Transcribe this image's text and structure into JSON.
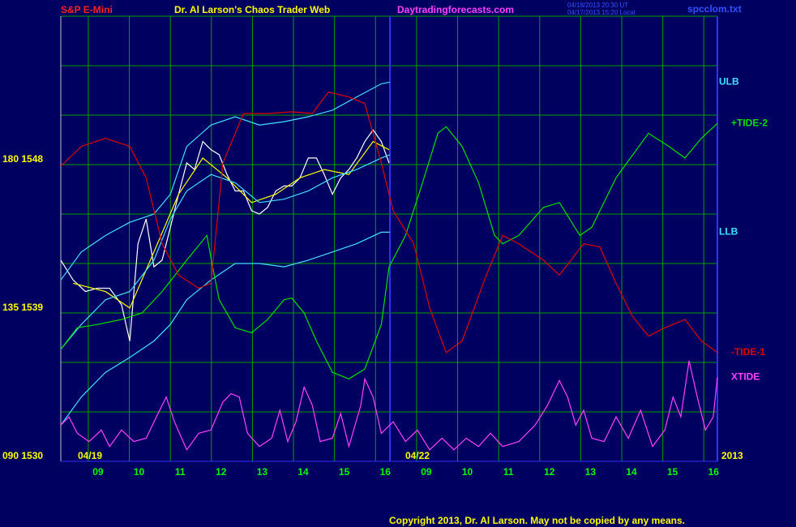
{
  "chart_data": {
    "type": "line",
    "symbol": "S&P E-Mini",
    "title": "Dr. Al Larson's Chaos Trader Web",
    "website": "Daytradingforecasts.com",
    "timestamps": [
      "04/18/2013 20:30 UT",
      "04/17/2013 15:20 Local"
    ],
    "file": "spcclom.txt",
    "copyright": "Copyright 2013, Dr. Al Larson. May not be copied by any means.",
    "date_labels": [
      "04/19",
      "04/22",
      "2013"
    ],
    "xlim": [
      8.33,
      24.33
    ],
    "xticks": [
      {
        "value": 9,
        "label": "09"
      },
      10,
      11,
      12,
      13,
      14,
      15,
      16,
      {
        "value": 17,
        "label": "09"
      },
      {
        "value": 18,
        "label": "10"
      },
      {
        "value": 19,
        "label": "11"
      },
      {
        "value": 20,
        "label": "12"
      },
      {
        "value": 21,
        "label": "13"
      },
      {
        "value": 22,
        "label": "14"
      },
      {
        "value": 23,
        "label": "15"
      },
      {
        "value": 24,
        "label": "16"
      }
    ],
    "session_break": 16.35,
    "ylim": [
      1530,
      1557
    ],
    "yticks": [
      {
        "value": 1530,
        "label": "090 1530"
      },
      {
        "value": 1539,
        "label": "135 1539"
      },
      {
        "value": 1548,
        "label": "180 1548"
      }
    ],
    "ygrid": [
      1530,
      1533,
      1536,
      1539,
      1542,
      1545,
      1548,
      1551,
      1554,
      1557
    ],
    "grid": true,
    "series": [
      {
        "color": "#ffffff",
        "x": [
          8.33,
          8.63,
          8.93,
          9.22,
          9.52,
          9.81,
          10.01,
          10.21,
          10.41,
          10.6,
          10.8,
          11.0,
          11.2,
          11.4,
          11.59,
          11.79,
          11.99,
          12.19,
          12.38,
          12.58,
          12.78,
          12.98,
          13.17,
          13.37,
          13.57,
          13.77,
          13.96,
          14.16,
          14.36,
          14.56,
          14.75,
          14.95,
          15.15,
          15.35,
          15.54,
          15.74,
          15.94,
          16.14,
          16.33
        ],
        "values": [
          1542.2,
          1541.0,
          1540.3,
          1540.5,
          1540.5,
          1539.5,
          1537.3,
          1543.2,
          1544.7,
          1541.8,
          1542.2,
          1544.2,
          1546.2,
          1548.1,
          1547.7,
          1549.4,
          1548.9,
          1548.6,
          1547.4,
          1546.4,
          1546.4,
          1545.2,
          1545.0,
          1545.4,
          1546.4,
          1546.7,
          1546.7,
          1547.2,
          1548.4,
          1548.4,
          1547.4,
          1546.2,
          1547.2,
          1547.7,
          1548.4,
          1549.4,
          1550.1,
          1549.4,
          1548.1
        ]
      },
      {
        "color": "#ffff00",
        "x": [
          8.63,
          9.42,
          10.01,
          10.6,
          11.2,
          11.79,
          12.38,
          12.98,
          13.57,
          14.16,
          14.75,
          15.35,
          15.94,
          16.33
        ],
        "values": [
          1540.8,
          1540.3,
          1539.3,
          1542.7,
          1546.2,
          1548.4,
          1547.2,
          1545.7,
          1546.2,
          1547.2,
          1547.7,
          1547.4,
          1549.4,
          1548.9
        ]
      },
      {
        "name": "ULB",
        "color": "#40e0ff",
        "x": [
          8.33,
          8.83,
          9.42,
          10.01,
          10.6,
          11.0,
          11.4,
          11.99,
          12.58,
          13.17,
          13.77,
          14.36,
          14.95,
          15.54,
          16.14,
          16.35
        ],
        "values": [
          1541.0,
          1542.7,
          1543.7,
          1544.5,
          1545.0,
          1546.2,
          1549.1,
          1550.4,
          1550.9,
          1550.4,
          1550.6,
          1550.9,
          1551.3,
          1552.1,
          1552.9,
          1553.0
        ]
      },
      {
        "color": "#40e0ff",
        "x": [
          8.33,
          8.83,
          9.42,
          10.01,
          10.6,
          11.0,
          11.4,
          11.99,
          12.58,
          13.17,
          13.77,
          14.36,
          14.95,
          15.54,
          16.14,
          16.35
        ],
        "values": [
          1536.8,
          1538.3,
          1539.8,
          1540.3,
          1542.2,
          1544.7,
          1546.4,
          1547.4,
          1546.9,
          1545.7,
          1545.9,
          1546.4,
          1547.2,
          1547.7,
          1548.4,
          1548.6
        ]
      },
      {
        "name": "LLB",
        "color": "#40e0ff",
        "x": [
          8.33,
          8.83,
          9.42,
          10.01,
          10.6,
          11.0,
          11.4,
          11.99,
          12.58,
          13.17,
          13.77,
          14.36,
          14.95,
          15.54,
          16.14,
          16.35
        ],
        "values": [
          1532.2,
          1533.9,
          1535.4,
          1536.3,
          1537.3,
          1538.3,
          1539.8,
          1541.0,
          1542.0,
          1542.0,
          1541.8,
          1542.2,
          1542.7,
          1543.2,
          1543.9,
          1543.9
        ]
      },
      {
        "name": "+TIDE-2",
        "color": "#00e000",
        "x": [
          8.33,
          8.73,
          9.22,
          9.81,
          10.31,
          10.8,
          11.4,
          11.89,
          12.03,
          12.19,
          12.58,
          12.98,
          13.37,
          13.77,
          13.96,
          14.26,
          14.56,
          14.95,
          15.35,
          15.74,
          16.14,
          16.33,
          16.73,
          17.12,
          17.52,
          17.72,
          18.11,
          18.51,
          18.9,
          19.1,
          19.49,
          20.09,
          20.48,
          20.98,
          21.27,
          21.86,
          22.65,
          23.15,
          23.54,
          23.94,
          24.33
        ],
        "values": [
          1536.8,
          1538.1,
          1538.3,
          1538.6,
          1539.0,
          1540.3,
          1542.2,
          1543.7,
          1541.8,
          1539.8,
          1538.1,
          1537.8,
          1538.6,
          1539.8,
          1539.9,
          1539.0,
          1537.3,
          1535.4,
          1535.0,
          1535.6,
          1538.3,
          1541.8,
          1543.7,
          1546.7,
          1549.9,
          1550.3,
          1549.1,
          1546.9,
          1543.7,
          1543.2,
          1543.7,
          1545.4,
          1545.7,
          1543.7,
          1544.2,
          1547.2,
          1549.9,
          1549.1,
          1548.4,
          1549.6,
          1550.5
        ]
      },
      {
        "name": "-TIDE-1",
        "color": "#e00000",
        "x": [
          8.33,
          8.83,
          9.42,
          10.01,
          10.41,
          10.8,
          11.2,
          11.69,
          11.99,
          12.28,
          12.78,
          13.37,
          13.96,
          14.46,
          14.85,
          15.35,
          15.74,
          16.14,
          16.43,
          16.93,
          17.32,
          17.72,
          18.11,
          18.7,
          19.1,
          19.49,
          20.09,
          20.48,
          21.07,
          21.47,
          21.86,
          22.26,
          22.65,
          23.05,
          23.54,
          23.94,
          24.33
        ],
        "values": [
          1547.9,
          1549.1,
          1549.6,
          1549.1,
          1547.2,
          1543.2,
          1541.3,
          1540.5,
          1540.8,
          1548.1,
          1551.1,
          1551.1,
          1551.2,
          1551.1,
          1552.4,
          1552.1,
          1551.7,
          1548.1,
          1545.2,
          1543.2,
          1539.3,
          1536.6,
          1537.3,
          1541.3,
          1543.7,
          1543.2,
          1542.2,
          1541.3,
          1543.2,
          1543.0,
          1540.8,
          1538.8,
          1537.6,
          1538.1,
          1538.6,
          1537.3,
          1536.6
        ]
      },
      {
        "name": "XTIDE",
        "color": "#ff40ff",
        "x": [
          8.33,
          8.53,
          8.73,
          9.02,
          9.32,
          9.52,
          9.81,
          10.11,
          10.41,
          10.7,
          10.9,
          11.1,
          11.4,
          11.69,
          11.99,
          12.28,
          12.48,
          12.68,
          12.88,
          13.17,
          13.47,
          13.67,
          13.86,
          14.06,
          14.26,
          14.46,
          14.65,
          14.95,
          15.15,
          15.35,
          15.64,
          15.74,
          15.94,
          16.14,
          16.43,
          16.73,
          17.02,
          17.32,
          17.62,
          17.91,
          18.21,
          18.51,
          18.8,
          19.1,
          19.49,
          19.89,
          20.19,
          20.48,
          20.68,
          20.88,
          21.07,
          21.27,
          21.57,
          21.86,
          22.16,
          22.46,
          22.75,
          23.05,
          23.25,
          23.44,
          23.64,
          23.84,
          24.04,
          24.23,
          24.33
        ],
        "values": [
          1532.2,
          1532.7,
          1531.7,
          1531.2,
          1531.9,
          1530.9,
          1531.9,
          1531.2,
          1531.4,
          1532.9,
          1533.9,
          1532.4,
          1530.7,
          1531.7,
          1531.9,
          1533.6,
          1534.1,
          1533.9,
          1531.7,
          1530.9,
          1531.4,
          1533.1,
          1531.2,
          1532.4,
          1534.5,
          1533.4,
          1531.2,
          1531.4,
          1532.9,
          1530.9,
          1533.4,
          1535.0,
          1533.9,
          1531.7,
          1532.4,
          1531.2,
          1531.9,
          1530.7,
          1531.4,
          1530.7,
          1531.4,
          1530.9,
          1531.7,
          1530.9,
          1531.2,
          1532.2,
          1533.4,
          1534.9,
          1533.9,
          1532.2,
          1533.1,
          1531.4,
          1531.2,
          1532.7,
          1531.4,
          1533.1,
          1530.9,
          1531.9,
          1533.9,
          1532.7,
          1536.1,
          1533.9,
          1531.9,
          1532.7,
          1535.1
        ]
      }
    ]
  }
}
